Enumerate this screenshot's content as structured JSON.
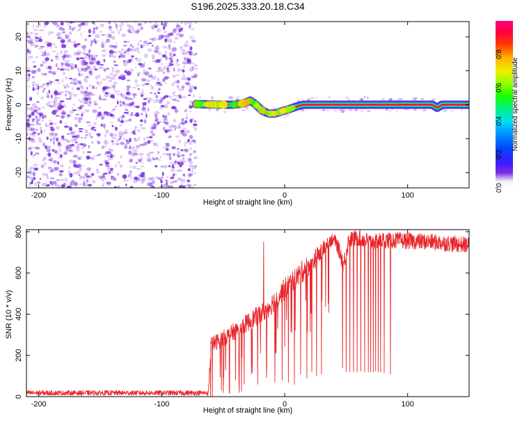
{
  "figure_title": "S196.2025.333.20.18.C34",
  "colorbar": {
    "label": "Normalized spectral amplitude",
    "ticks": [
      "0.0",
      "0.2",
      "0.4",
      "0.6",
      "0.8"
    ],
    "tick_values": [
      0.0,
      0.2,
      0.4,
      0.6,
      0.8
    ],
    "range": [
      0,
      1
    ]
  },
  "colors": {
    "series": "#e8262a",
    "axis": "#000000",
    "speckle": "#7a2ee0",
    "background": "#ffffff"
  },
  "chart_data": [
    {
      "type": "heatmap",
      "title": "",
      "xlabel": "Height of straight line (km)",
      "ylabel": "Frequency (Hz)",
      "xlim": [
        -210,
        150
      ],
      "ylim": [
        -24.5,
        24.5
      ],
      "x_ticks": [
        -200,
        -100,
        0,
        100
      ],
      "x_tick_labels": [
        "-200",
        "-100",
        "0",
        "100"
      ],
      "y_ticks": [
        -20,
        -10,
        0,
        10,
        20
      ],
      "y_tick_labels": [
        "-20",
        "-10",
        "0",
        "10",
        "20"
      ],
      "noise_region_x": [
        -210,
        -72
      ],
      "ridge": {
        "x": [
          -72,
          -62,
          -52,
          -42,
          -33,
          -28,
          -24,
          -18,
          -13,
          -8,
          -3,
          3,
          9,
          15,
          30,
          50,
          70,
          100,
          120,
          124,
          128,
          150
        ],
        "y": [
          0.2,
          0.1,
          0.0,
          0.0,
          0.4,
          1.2,
          0.2,
          -1.8,
          -2.6,
          -2.6,
          -2.0,
          -1.4,
          -0.6,
          0.0,
          0.0,
          0.0,
          0.0,
          0.0,
          0.0,
          -0.9,
          0.0,
          0.0
        ],
        "peak_amplitude": 0.95
      }
    },
    {
      "type": "line",
      "title": "",
      "xlabel": "Height of straight line (km)",
      "ylabel": "SNR (10 * v/v)",
      "xlim": [
        -210,
        150
      ],
      "ylim": [
        0,
        810
      ],
      "x_ticks": [
        -200,
        -100,
        0,
        100
      ],
      "x_tick_labels": [
        "-200",
        "-100",
        "0",
        "100"
      ],
      "y_ticks": [
        0,
        200,
        400,
        600,
        800
      ],
      "y_tick_labels": [
        "0",
        "200",
        "400",
        "600",
        "800"
      ],
      "series": [
        {
          "name": "SNR",
          "envelope_x": [
            -210,
            -62,
            -60,
            -45,
            -30,
            -15,
            0,
            15,
            30,
            35,
            40,
            45,
            48,
            52,
            60,
            70,
            80,
            100,
            120,
            150
          ],
          "envelope_y": [
            18,
            18,
            250,
            300,
            360,
            420,
            520,
            610,
            700,
            750,
            770,
            700,
            640,
            760,
            770,
            750,
            760,
            755,
            750,
            735
          ],
          "noise_amplitude": [
            12,
            12,
            40,
            40,
            45,
            50,
            55,
            55,
            45,
            35,
            30,
            40,
            45,
            40,
            40,
            40,
            40,
            40,
            40,
            40
          ],
          "dropouts": {
            "x": [
              -48,
              -40,
              -33,
              -27,
              -22,
              -8,
              -2,
              3,
              8,
              13,
              18,
              22,
              26,
              30,
              47,
              50,
              53,
              56,
              59,
              62,
              65,
              68,
              70,
              72,
              74,
              76,
              78,
              81,
              86
            ],
            "y": [
              130,
              80,
              60,
              110,
              60,
              70,
              80,
              70,
              60,
              110,
              90,
              120,
              100,
              110,
              140,
              120,
              120,
              120,
              120,
              125,
              120,
              120,
              120,
              120,
              125,
              120,
              120,
              115,
              110
            ]
          },
          "spikes": {
            "x": [
              -17,
              40
            ],
            "y": [
              750,
              760
            ]
          }
        }
      ]
    }
  ]
}
